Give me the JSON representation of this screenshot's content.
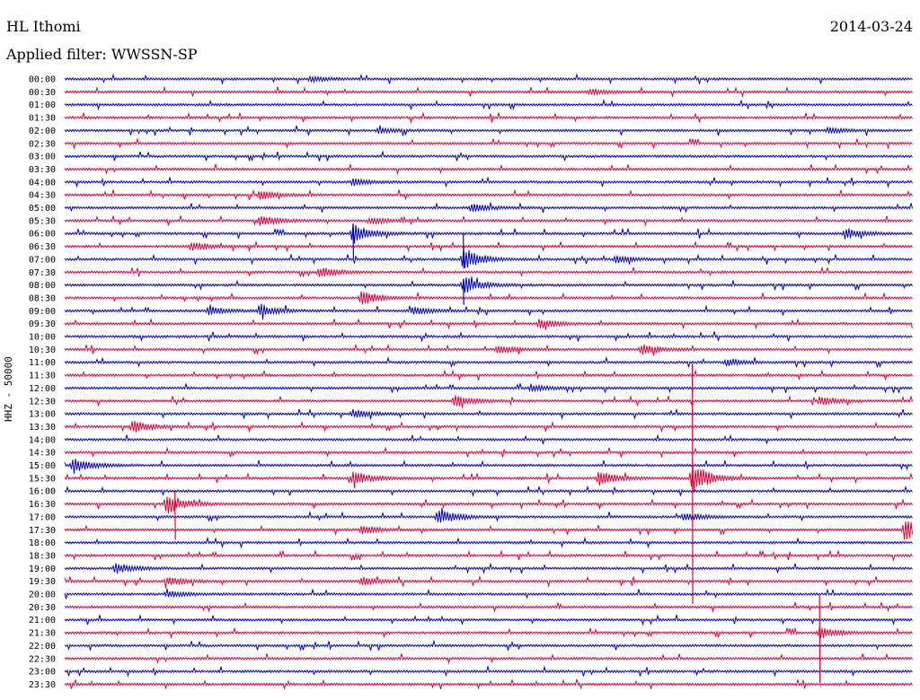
{
  "header": {
    "station": "HL Ithomi",
    "date": "2014-03-24",
    "filter": "Applied filter: WWSSN-SP"
  },
  "chart_data": {
    "type": "line",
    "ylabel": "HHZ - 50000",
    "colors": [
      "#0000cc",
      "#e0003a"
    ],
    "rows": [
      "00:00",
      "00:30",
      "01:00",
      "01:30",
      "02:00",
      "02:30",
      "03:00",
      "03:30",
      "04:00",
      "04:30",
      "05:00",
      "05:30",
      "06:00",
      "06:30",
      "07:00",
      "07:30",
      "08:00",
      "08:30",
      "09:00",
      "09:30",
      "10:00",
      "10:30",
      "11:00",
      "11:30",
      "12:00",
      "12:30",
      "13:00",
      "13:30",
      "14:00",
      "14:30",
      "15:00",
      "15:30",
      "16:00",
      "16:30",
      "17:00",
      "17:30",
      "18:00",
      "18:30",
      "19:00",
      "19:30",
      "20:00",
      "20:30",
      "21:00",
      "21:30",
      "22:00",
      "22:30",
      "23:00",
      "23:30"
    ],
    "events": [
      {
        "row": 0,
        "at": 0.29,
        "amp": 3
      },
      {
        "row": 1,
        "at": 0.62,
        "amp": 3
      },
      {
        "row": 4,
        "at": 0.37,
        "amp": 3
      },
      {
        "row": 4,
        "at": 0.9,
        "amp": 3
      },
      {
        "row": 8,
        "at": 0.34,
        "amp": 4
      },
      {
        "row": 9,
        "at": 0.23,
        "amp": 5
      },
      {
        "row": 10,
        "at": 0.48,
        "amp": 5
      },
      {
        "row": 11,
        "at": 0.23,
        "amp": 6
      },
      {
        "row": 11,
        "at": 0.36,
        "amp": 4
      },
      {
        "row": 12,
        "at": 0.34,
        "amp": 12
      },
      {
        "row": 12,
        "at": 0.92,
        "amp": 6
      },
      {
        "row": 13,
        "at": 0.15,
        "amp": 5
      },
      {
        "row": 14,
        "at": 0.47,
        "amp": 14
      },
      {
        "row": 14,
        "at": 0.65,
        "amp": 4
      },
      {
        "row": 15,
        "at": 0.3,
        "amp": 6
      },
      {
        "row": 16,
        "at": 0.47,
        "amp": 10
      },
      {
        "row": 17,
        "at": 0.35,
        "amp": 8
      },
      {
        "row": 18,
        "at": 0.17,
        "amp": 5
      },
      {
        "row": 18,
        "at": 0.23,
        "amp": 7
      },
      {
        "row": 18,
        "at": 0.41,
        "amp": 5
      },
      {
        "row": 19,
        "at": 0.56,
        "amp": 5
      },
      {
        "row": 21,
        "at": 0.51,
        "amp": 4
      },
      {
        "row": 21,
        "at": 0.68,
        "amp": 6
      },
      {
        "row": 22,
        "at": 0.78,
        "amp": 4
      },
      {
        "row": 24,
        "at": 0.55,
        "amp": 4
      },
      {
        "row": 25,
        "at": 0.46,
        "amp": 7
      },
      {
        "row": 25,
        "at": 0.89,
        "amp": 5
      },
      {
        "row": 26,
        "at": 0.34,
        "amp": 5
      },
      {
        "row": 27,
        "at": 0.08,
        "amp": 7
      },
      {
        "row": 30,
        "at": 0.01,
        "amp": 9
      },
      {
        "row": 31,
        "at": 0.34,
        "amp": 8
      },
      {
        "row": 31,
        "at": 0.63,
        "amp": 9
      },
      {
        "row": 31,
        "at": 0.74,
        "amp": 18
      },
      {
        "row": 33,
        "at": 0.12,
        "amp": 12
      },
      {
        "row": 34,
        "at": 0.44,
        "amp": 10
      },
      {
        "row": 34,
        "at": 0.73,
        "amp": 5
      },
      {
        "row": 35,
        "at": 0.35,
        "amp": 5
      },
      {
        "row": 35,
        "at": 0.99,
        "amp": 12
      },
      {
        "row": 38,
        "at": 0.06,
        "amp": 6
      },
      {
        "row": 39,
        "at": 0.12,
        "amp": 5
      },
      {
        "row": 39,
        "at": 0.35,
        "amp": 5
      },
      {
        "row": 40,
        "at": 0.12,
        "amp": 4
      },
      {
        "row": 43,
        "at": 0.89,
        "amp": 6
      }
    ],
    "spikes": [
      {
        "row": 12,
        "at": 0.34,
        "up": 10,
        "down": 28
      },
      {
        "row": 14,
        "at": 0.47,
        "up": 28,
        "down": 10
      },
      {
        "row": 16,
        "at": 0.47,
        "up": 6,
        "down": 22
      },
      {
        "row": 33,
        "at": 0.13,
        "up": 14,
        "down": 40
      },
      {
        "row": 31,
        "at": 0.74,
        "up": 128,
        "down": 140
      },
      {
        "row": 43,
        "at": 0.89,
        "up": 42,
        "down": 56
      }
    ]
  }
}
